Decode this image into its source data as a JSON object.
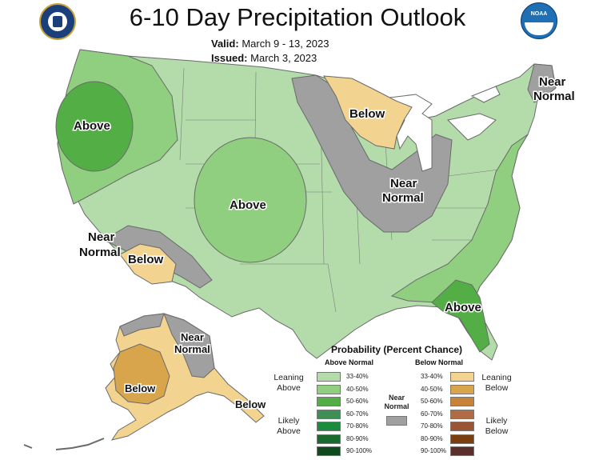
{
  "title": "6-10 Day Precipitation Outlook",
  "valid_label": "Valid:",
  "valid_value": "March 9 - 13, 2023",
  "issued_label": "Issued:",
  "issued_value": "March 3, 2023",
  "logos": {
    "left": "dept-commerce-seal-icon",
    "right": "noaa-logo-icon",
    "right_text": "NOAA"
  },
  "map_labels": {
    "northwest": "Above",
    "central": "Above",
    "great_lakes_west": "Below",
    "ohio_valley": [
      "Near",
      "Normal"
    ],
    "new_england": [
      "Near",
      "Normal"
    ],
    "southwest_near": [
      "Near",
      "Normal"
    ],
    "southwest_below": "Below",
    "southeast": "Above",
    "alaska_below": "Below",
    "alaska_near": [
      "Near",
      "Normal"
    ],
    "alaska_panhandle": "Below"
  },
  "legend": {
    "title": "Probability (Percent Chance)",
    "above_header": "Above Normal",
    "below_header": "Below Normal",
    "near_header": [
      "Near",
      "Normal"
    ],
    "leaning_above": [
      "Leaning",
      "Above"
    ],
    "likely_above": [
      "Likely",
      "Above"
    ],
    "leaning_below": [
      "Leaning",
      "Below"
    ],
    "likely_below": [
      "Likely",
      "Below"
    ],
    "above_bins": [
      {
        "label": "33-40%",
        "color": "#b3dcaa"
      },
      {
        "label": "40-50%",
        "color": "#8fcf7f"
      },
      {
        "label": "50-60%",
        "color": "#52ae45"
      },
      {
        "label": "60-70%",
        "color": "#3f8f55"
      },
      {
        "label": "70-80%",
        "color": "#1b8c3e"
      },
      {
        "label": "80-90%",
        "color": "#186b2c"
      },
      {
        "label": "90-100%",
        "color": "#0f4a1e"
      }
    ],
    "below_bins": [
      {
        "label": "33-40%",
        "color": "#f2d38f"
      },
      {
        "label": "40-50%",
        "color": "#d8a54c"
      },
      {
        "label": "50-60%",
        "color": "#c9823a"
      },
      {
        "label": "60-70%",
        "color": "#b06a44"
      },
      {
        "label": "70-80%",
        "color": "#9a5535"
      },
      {
        "label": "80-90%",
        "color": "#7a3f0f"
      },
      {
        "label": "90-100%",
        "color": "#5a2e2a"
      }
    ],
    "near_color": "#a0a0a0"
  },
  "colors": {
    "above_33_40": "#b3dcaa",
    "above_40_50": "#8fcf7f",
    "above_50_60": "#52ae45",
    "below_33_40": "#f2d38f",
    "below_40_50": "#d8a54c",
    "near_normal": "#a0a0a0"
  }
}
